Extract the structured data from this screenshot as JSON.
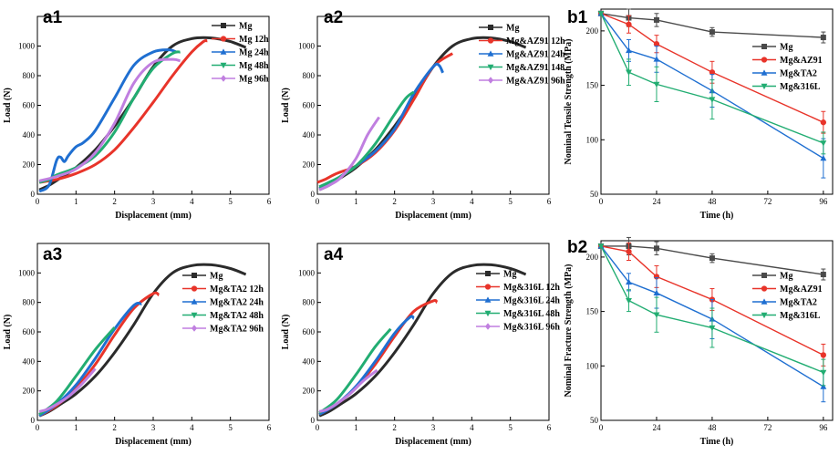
{
  "chart_data": [
    {
      "id": "a1",
      "type": "line",
      "panel_label": "a1",
      "xlabel": "Displacement (mm)",
      "ylabel": "Load (N)",
      "xlim": [
        0,
        6
      ],
      "ylim": [
        0,
        1200
      ],
      "xticks": [
        "0",
        "1",
        "2",
        "3",
        "4",
        "5",
        "6"
      ],
      "yticks": [
        "0",
        "200",
        "400",
        "600",
        "800",
        "1000"
      ],
      "series": [
        {
          "name": "Mg",
          "color": "#2b2b2b",
          "marker": "square",
          "x": [
            0.05,
            0.3,
            0.6,
            1.0,
            1.5,
            2.0,
            2.5,
            3.0,
            3.5,
            4.0,
            4.5,
            5.0,
            5.4
          ],
          "y": [
            30,
            60,
            110,
            180,
            300,
            460,
            650,
            860,
            1000,
            1050,
            1055,
            1030,
            990
          ]
        },
        {
          "name": "Mg 12h",
          "color": "#e8342a",
          "marker": "circle",
          "x": [
            0.05,
            0.5,
            1.0,
            1.5,
            2.0,
            2.5,
            3.0,
            3.5,
            4.0,
            4.3,
            4.4
          ],
          "y": [
            80,
            100,
            140,
            200,
            300,
            450,
            620,
            800,
            960,
            1030,
            1035
          ]
        },
        {
          "name": "Mg 24h",
          "color": "#1f6fd1",
          "marker": "triangle",
          "x": [
            0.05,
            0.3,
            0.5,
            0.6,
            0.7,
            0.8,
            1.0,
            1.2,
            1.5,
            2.0,
            2.5,
            3.0,
            3.4,
            3.6
          ],
          "y": [
            20,
            60,
            230,
            250,
            220,
            260,
            320,
            350,
            430,
            650,
            870,
            960,
            975,
            960
          ]
        },
        {
          "name": "Mg 48h",
          "color": "#22ad72",
          "marker": "triangle-down",
          "x": [
            0.05,
            0.3,
            0.5,
            1.0,
            1.5,
            2.0,
            2.5,
            3.0,
            3.5,
            3.7
          ],
          "y": [
            80,
            100,
            130,
            180,
            260,
            420,
            650,
            850,
            950,
            960
          ]
        },
        {
          "name": "Mg 96h",
          "color": "#c07fe0",
          "marker": "diamond",
          "x": [
            0.05,
            0.5,
            1.0,
            1.5,
            2.0,
            2.5,
            3.0,
            3.5,
            3.7
          ],
          "y": [
            90,
            120,
            170,
            280,
            480,
            750,
            890,
            910,
            900
          ]
        }
      ]
    },
    {
      "id": "a2",
      "type": "line",
      "panel_label": "a2",
      "xlabel": "Displacement (mm)",
      "ylabel": "Load (N)",
      "xlim": [
        0,
        6
      ],
      "ylim": [
        0,
        1200
      ],
      "xticks": [
        "0",
        "1",
        "2",
        "3",
        "4",
        "5",
        "6"
      ],
      "yticks": [
        "0",
        "200",
        "400",
        "600",
        "800",
        "1000"
      ],
      "series": [
        {
          "name": "Mg",
          "color": "#2b2b2b",
          "marker": "square",
          "x": [
            0.05,
            0.3,
            0.6,
            1.0,
            1.5,
            2.0,
            2.5,
            3.0,
            3.5,
            4.0,
            4.5,
            5.0,
            5.4
          ],
          "y": [
            30,
            60,
            110,
            180,
            300,
            460,
            650,
            860,
            1000,
            1050,
            1055,
            1030,
            990
          ]
        },
        {
          "name": "Mg&AZ91 12h",
          "color": "#e8342a",
          "marker": "circle",
          "x": [
            0.0,
            0.2,
            0.5,
            1.0,
            1.5,
            2.0,
            2.5,
            3.0,
            3.5
          ],
          "y": [
            80,
            100,
            140,
            190,
            280,
            430,
            640,
            860,
            950
          ]
        },
        {
          "name": "Mg&AZ91 24h",
          "color": "#1f6fd1",
          "marker": "triangle",
          "x": [
            0.05,
            0.3,
            0.6,
            1.0,
            1.5,
            2.0,
            2.5,
            3.0,
            3.15,
            3.25
          ],
          "y": [
            40,
            70,
            120,
            190,
            290,
            440,
            680,
            860,
            870,
            820
          ]
        },
        {
          "name": "Mg&AZ91 148",
          "color": "#22ad72",
          "marker": "triangle-down",
          "x": [
            0.05,
            0.3,
            0.6,
            1.0,
            1.5,
            2.0,
            2.3,
            2.5
          ],
          "y": [
            50,
            80,
            120,
            190,
            340,
            540,
            650,
            690
          ]
        },
        {
          "name": "Mg&AZ91 96h",
          "color": "#c07fe0",
          "marker": "diamond",
          "x": [
            0.05,
            0.3,
            0.6,
            1.0,
            1.3,
            1.6
          ],
          "y": [
            30,
            60,
            110,
            240,
            400,
            520
          ]
        }
      ]
    },
    {
      "id": "a3",
      "type": "line",
      "panel_label": "a3",
      "xlabel": "Displacement (mm)",
      "ylabel": "Load (N)",
      "xlim": [
        0,
        6
      ],
      "ylim": [
        0,
        1200
      ],
      "xticks": [
        "0",
        "1",
        "2",
        "3",
        "4",
        "5",
        "6"
      ],
      "yticks": [
        "0",
        "200",
        "400",
        "600",
        "800",
        "1000"
      ],
      "series": [
        {
          "name": "Mg",
          "color": "#2b2b2b",
          "marker": "square",
          "x": [
            0.05,
            0.3,
            0.6,
            1.0,
            1.5,
            2.0,
            2.5,
            3.0,
            3.5,
            4.0,
            4.5,
            5.0,
            5.4
          ],
          "y": [
            30,
            60,
            110,
            180,
            300,
            460,
            650,
            860,
            1000,
            1050,
            1055,
            1030,
            990
          ]
        },
        {
          "name": "Mg&TA2 12h",
          "color": "#e8342a",
          "marker": "circle",
          "x": [
            0.05,
            0.5,
            1.0,
            1.5,
            2.0,
            2.5,
            3.0,
            3.15
          ],
          "y": [
            30,
            100,
            220,
            380,
            580,
            760,
            860,
            850
          ]
        },
        {
          "name": "Mg&TA2 24h",
          "color": "#1f6fd1",
          "marker": "triangle",
          "x": [
            0.05,
            0.5,
            1.0,
            1.5,
            2.0,
            2.5,
            2.7
          ],
          "y": [
            30,
            110,
            240,
            420,
            620,
            780,
            790
          ]
        },
        {
          "name": "Mg&TA2 48h",
          "color": "#22ad72",
          "marker": "triangle-down",
          "x": [
            0.05,
            0.5,
            1.0,
            1.5,
            2.0
          ],
          "y": [
            40,
            130,
            300,
            480,
            630
          ]
        },
        {
          "name": "Mg&TA2 96h",
          "color": "#c07fe0",
          "marker": "diamond",
          "x": [
            0.05,
            0.3,
            0.8,
            1.2,
            1.5
          ],
          "y": [
            60,
            80,
            160,
            260,
            350
          ]
        }
      ]
    },
    {
      "id": "a4",
      "type": "line",
      "panel_label": "a4",
      "xlabel": "Displacement (mm)",
      "ylabel": "Load (N)",
      "xlim": [
        0,
        6
      ],
      "ylim": [
        0,
        1200
      ],
      "xticks": [
        "0",
        "1",
        "2",
        "3",
        "4",
        "5",
        "6"
      ],
      "yticks": [
        "0",
        "200",
        "400",
        "600",
        "800",
        "1000"
      ],
      "series": [
        {
          "name": "Mg",
          "color": "#2b2b2b",
          "marker": "square",
          "x": [
            0.05,
            0.3,
            0.6,
            1.0,
            1.5,
            2.0,
            2.5,
            3.0,
            3.5,
            4.0,
            4.5,
            5.0,
            5.4
          ],
          "y": [
            30,
            60,
            110,
            180,
            300,
            460,
            650,
            860,
            1000,
            1050,
            1055,
            1030,
            990
          ]
        },
        {
          "name": "Mg&316L 12h",
          "color": "#e8342a",
          "marker": "circle",
          "x": [
            0.05,
            0.5,
            1.0,
            1.5,
            2.0,
            2.5,
            3.0,
            3.1
          ],
          "y": [
            40,
            110,
            220,
            380,
            570,
            740,
            810,
            800
          ]
        },
        {
          "name": "Mg&316L 24h",
          "color": "#1f6fd1",
          "marker": "triangle",
          "x": [
            0.05,
            0.5,
            1.0,
            1.5,
            2.0,
            2.4,
            2.5
          ],
          "y": [
            40,
            110,
            230,
            400,
            590,
            700,
            690
          ]
        },
        {
          "name": "Mg&316L 48h",
          "color": "#22ad72",
          "marker": "triangle-down",
          "x": [
            0.05,
            0.5,
            1.0,
            1.5,
            1.9
          ],
          "y": [
            50,
            140,
            310,
            500,
            620
          ]
        },
        {
          "name": "Mg&316L 96h",
          "color": "#c07fe0",
          "marker": "diamond",
          "x": [
            0.05,
            0.3,
            0.8,
            1.2,
            1.55
          ],
          "y": [
            60,
            80,
            170,
            270,
            340
          ]
        }
      ]
    },
    {
      "id": "b1",
      "type": "line",
      "panel_label": "b1",
      "xlabel": "Time (h)",
      "ylabel": "Nominal Tensile Strength (MPa)",
      "xlim": [
        0,
        100
      ],
      "ylim": [
        50,
        220
      ],
      "x_tick_values": [
        0,
        24,
        48,
        72,
        96
      ],
      "y_tick_values": [
        50,
        100,
        150,
        200
      ],
      "xticks": [
        "0",
        "24",
        "48",
        "72",
        "96"
      ],
      "yticks": [
        "50",
        "100",
        "150",
        "200"
      ],
      "x": [
        0,
        12,
        24,
        48,
        96
      ],
      "series": [
        {
          "name": "Mg",
          "color": "#4a4a4a",
          "marker": "square",
          "values": [
            216,
            212,
            210,
            199,
            194
          ],
          "errors": [
            0,
            8,
            6,
            4,
            5
          ]
        },
        {
          "name": "Mg&AZ91",
          "color": "#e8342a",
          "marker": "circle",
          "values": [
            216,
            206,
            188,
            162,
            116
          ],
          "errors": [
            0,
            8,
            8,
            10,
            10
          ]
        },
        {
          "name": "Mg&TA2",
          "color": "#1f6fd1",
          "marker": "triangle",
          "values": [
            216,
            182,
            174,
            145,
            83
          ],
          "errors": [
            0,
            10,
            12,
            15,
            18
          ]
        },
        {
          "name": "Mg&316L",
          "color": "#22ad72",
          "marker": "triangle-down",
          "values": [
            216,
            162,
            151,
            137,
            97
          ],
          "errors": [
            0,
            12,
            16,
            18,
            10
          ]
        }
      ]
    },
    {
      "id": "b2",
      "type": "line",
      "panel_label": "b2",
      "xlabel": "Time (h)",
      "ylabel": "Nominal Fracture Strength (MPa)",
      "xlim": [
        0,
        100
      ],
      "ylim": [
        50,
        215
      ],
      "x_tick_values": [
        0,
        24,
        48,
        72,
        96
      ],
      "y_tick_values": [
        50,
        100,
        150,
        200
      ],
      "xticks": [
        "0",
        "24",
        "48",
        "72",
        "96"
      ],
      "yticks": [
        "50",
        "100",
        "150",
        "200"
      ],
      "x": [
        0,
        12,
        24,
        48,
        96
      ],
      "series": [
        {
          "name": "Mg",
          "color": "#4a4a4a",
          "marker": "square",
          "values": [
            210,
            210,
            208,
            199,
            184
          ],
          "errors": [
            0,
            8,
            6,
            4,
            5
          ]
        },
        {
          "name": "Mg&AZ91",
          "color": "#e8342a",
          "marker": "circle",
          "values": [
            210,
            205,
            182,
            161,
            110
          ],
          "errors": [
            0,
            8,
            10,
            10,
            10
          ]
        },
        {
          "name": "Mg&TA2",
          "color": "#1f6fd1",
          "marker": "triangle",
          "values": [
            210,
            177,
            167,
            143,
            81
          ],
          "errors": [
            0,
            8,
            14,
            18,
            14
          ]
        },
        {
          "name": "Mg&316L",
          "color": "#22ad72",
          "marker": "triangle-down",
          "values": [
            210,
            160,
            147,
            135,
            94
          ],
          "errors": [
            0,
            10,
            16,
            18,
            12
          ]
        }
      ]
    }
  ]
}
